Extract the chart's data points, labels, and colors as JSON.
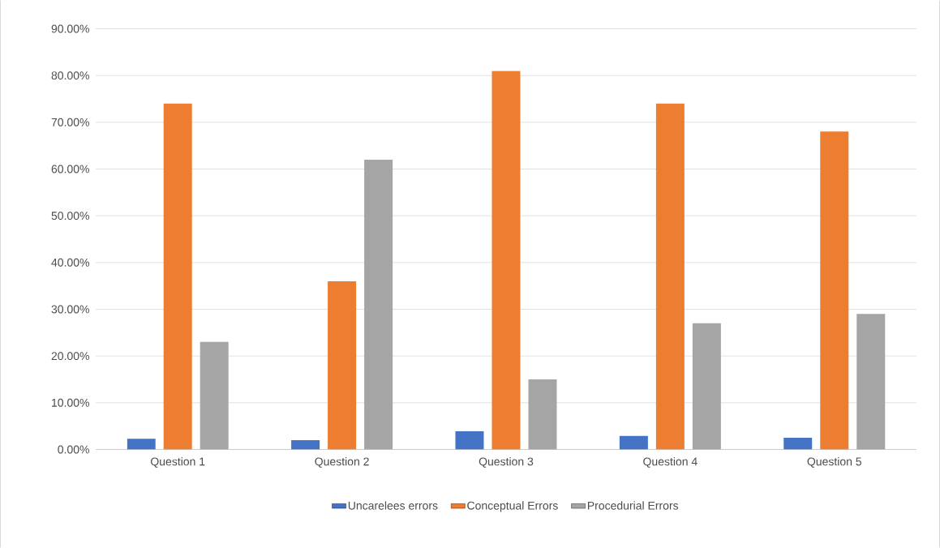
{
  "chart_data": {
    "type": "bar",
    "categories": [
      "Question 1",
      "Question 2",
      "Question 3",
      "Question 4",
      "Question 5"
    ],
    "series": [
      {
        "name": "Uncarelees errors",
        "color": "#4472c4",
        "values": [
          2.3,
          2.0,
          3.9,
          2.9,
          2.5
        ]
      },
      {
        "name": "Conceptual Errors",
        "color": "#ed7d31",
        "values": [
          74,
          36,
          81,
          74,
          68
        ]
      },
      {
        "name": "Procedurial Errors",
        "color": "#a5a5a5",
        "values": [
          23,
          62,
          15,
          27,
          29
        ]
      }
    ],
    "ylim": [
      0,
      90
    ],
    "yticks": [
      {
        "value": 0,
        "label": "0.00%"
      },
      {
        "value": 10,
        "label": "10.00%"
      },
      {
        "value": 20,
        "label": "20.00%"
      },
      {
        "value": 30,
        "label": "30.00%"
      },
      {
        "value": 40,
        "label": "40.00%"
      },
      {
        "value": 50,
        "label": "50.00%"
      },
      {
        "value": 60,
        "label": "60.00%"
      },
      {
        "value": 70,
        "label": "70.00%"
      },
      {
        "value": 80,
        "label": "80.00%"
      },
      {
        "value": 90,
        "label": "90.00%"
      }
    ],
    "grid": "y",
    "legend": "bottom"
  }
}
